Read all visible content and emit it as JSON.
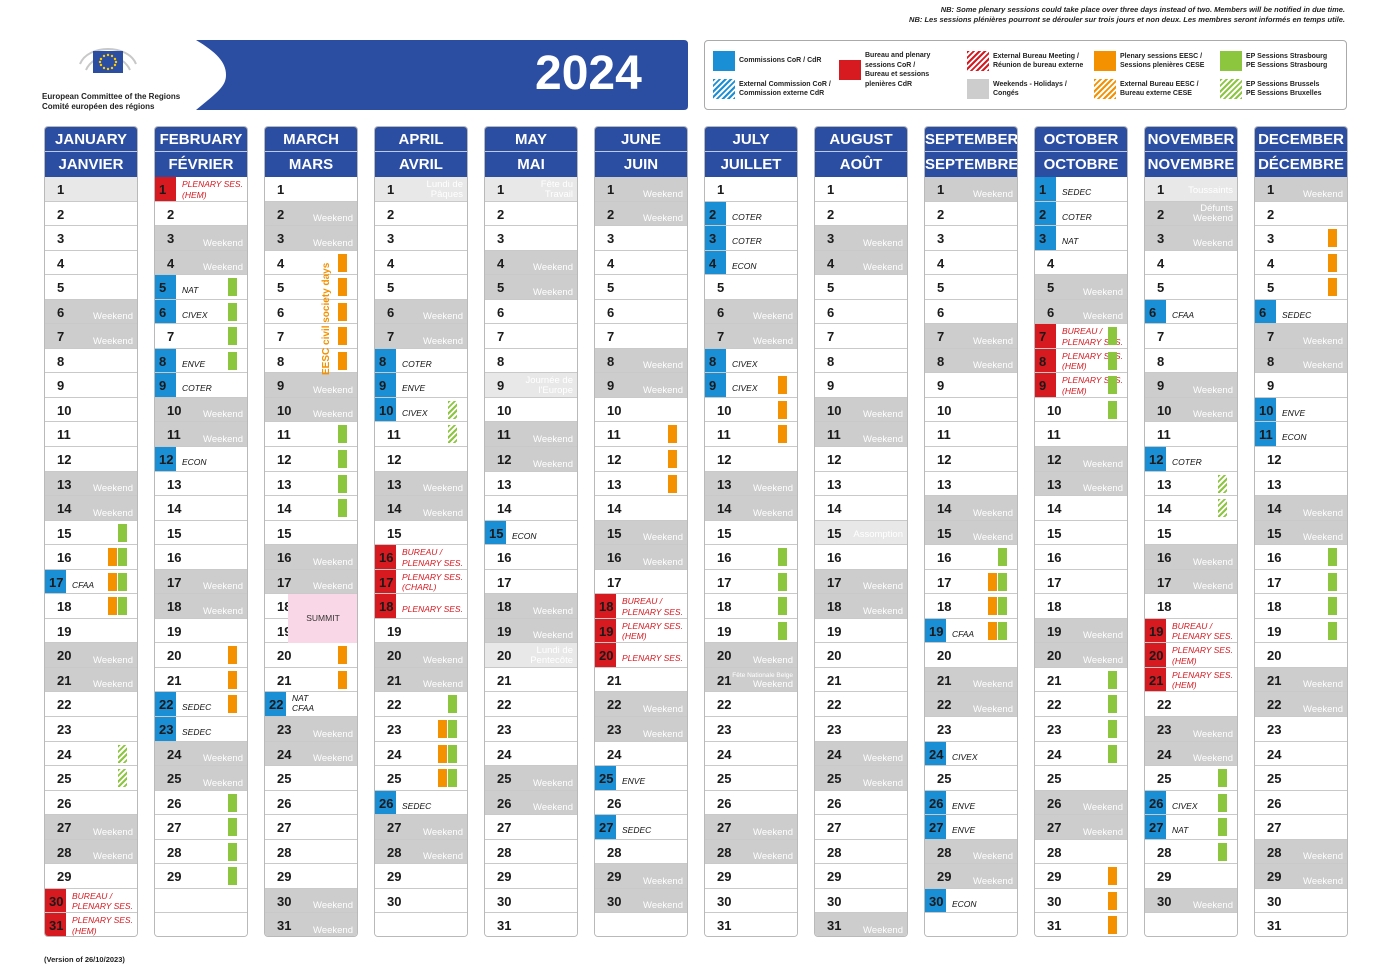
{
  "notice": {
    "en": "NB: Some plenary sessions could take place over three days instead of two.  Members will be notified in due time.",
    "fr": "NB: Les sessions plénières pourront se dérouler sur trois jours et non deux. Les membres seront informés en temps utile."
  },
  "organization": {
    "name_en": "European Committee of the Regions",
    "name_fr": "Comité européen des régions"
  },
  "year": "2024",
  "colors": {
    "cor": "#1a8fd5",
    "plenary": "#d71920",
    "eesc": "#f39100",
    "ep": "#8cc63f",
    "header": "#2c4ea2",
    "weekend": "#cdcdcd"
  },
  "legend": [
    {
      "swatch": "cor",
      "text": [
        "Commissions CoR / CdR"
      ]
    },
    {
      "swatch": "cor-hatch",
      "text": [
        "External Commission CoR /",
        "Commission externe CdR"
      ]
    },
    {
      "swatch": "plenary",
      "text": [
        "Bureau and plenary",
        "sessions CoR /",
        "Bureau et sessions",
        "plenières CdR"
      ]
    },
    {
      "swatch": "plenary-hatch",
      "text": [
        "External Bureau Meeting /",
        "Réunion de bureau externe"
      ]
    },
    {
      "swatch": "grey",
      "text": [
        "Weekends - Holidays /",
        "Congés"
      ]
    },
    {
      "swatch": "eesc",
      "text": [
        "Plenary sessions EESC /",
        "Sessions plenières CESE"
      ]
    },
    {
      "swatch": "eesc-hatch",
      "text": [
        "External Bureau EESC /",
        "Bureau externe CESE"
      ]
    },
    {
      "swatch": "ep",
      "text": [
        "EP Sessions Strasbourg",
        "PE Sessions Strasbourg"
      ]
    },
    {
      "swatch": "ep-hatch",
      "text": [
        "EP Sessions Brussels",
        "PE Sessions Bruxelles"
      ]
    }
  ],
  "weekend_label": "Weekend",
  "summit_label": "SUMMIT",
  "eesc_civil_society_days": "EESC civil society days",
  "version": "(Version of 26/10/2023)",
  "months": [
    {
      "en": "JANUARY",
      "fr": "JANVIER",
      "days": 31,
      "start": 1,
      "holidays": {
        "1": ""
      },
      "cor": {
        "17": "CFAA"
      },
      "plenary": {
        "30": [
          "BUREAU /",
          "PLENARY SES."
        ],
        "31": [
          "PLENARY SES.",
          "(HEM)"
        ]
      },
      "bars": {
        "15": [
          "ep"
        ],
        "16": [
          "eesc",
          "ep"
        ],
        "17": [
          "eesc",
          "ep"
        ],
        "18": [
          "eesc",
          "ep"
        ],
        "24": [
          "ep-hatch"
        ],
        "25": [
          "ep-hatch"
        ]
      }
    },
    {
      "en": "FEBRUARY",
      "fr": "FÉVRIER",
      "days": 29,
      "start": 4,
      "holidays": {},
      "cor": {
        "5": "NAT",
        "6": "CIVEX",
        "8": "ENVE",
        "9": "COTER",
        "12": "ECON",
        "22": "SEDEC",
        "23": "SEDEC"
      },
      "plenary": {
        "1": [
          "PLENARY SES.",
          "(HEM)"
        ]
      },
      "bars": {
        "5": [
          "ep"
        ],
        "6": [
          "ep"
        ],
        "7": [
          "ep"
        ],
        "8": [
          "ep"
        ],
        "20": [
          "eesc"
        ],
        "21": [
          "eesc"
        ],
        "22": [
          "eesc"
        ],
        "26": [
          "ep"
        ],
        "27": [
          "ep"
        ],
        "28": [
          "ep"
        ],
        "29": [
          "ep"
        ]
      }
    },
    {
      "en": "MARCH",
      "fr": "MARS",
      "days": 31,
      "start": 5,
      "holidays": {},
      "cor": {
        "22": "NAT CFAA"
      },
      "plenary": {},
      "bars": {
        "4": [
          "eesc"
        ],
        "5": [
          "eesc"
        ],
        "6": [
          "eesc"
        ],
        "7": [
          "eesc"
        ],
        "8": [
          "eesc"
        ],
        "11": [
          "ep"
        ],
        "12": [
          "ep"
        ],
        "13": [
          "ep"
        ],
        "14": [
          "ep"
        ],
        "20": [
          "eesc"
        ],
        "21": [
          "eesc"
        ]
      }
    },
    {
      "en": "APRIL",
      "fr": "AVRIL",
      "days": 30,
      "start": 1,
      "holidays": {
        "1": "Lundi de Pâques"
      },
      "cor": {
        "8": "COTER",
        "9": "ENVE",
        "10": "CIVEX",
        "26": "SEDEC"
      },
      "plenary": {
        "16": [
          "BUREAU /",
          "PLENARY SES."
        ],
        "17": [
          "PLENARY SES.",
          "(CHARL)"
        ],
        "18": [
          "PLENARY SES."
        ]
      },
      "bars": {
        "10": [
          "ep-hatch"
        ],
        "11": [
          "ep-hatch"
        ],
        "22": [
          "ep"
        ],
        "23": [
          "eesc",
          "ep"
        ],
        "24": [
          "eesc",
          "ep"
        ],
        "25": [
          "eesc",
          "ep"
        ]
      }
    },
    {
      "en": "MAY",
      "fr": "MAI",
      "days": 31,
      "start": 3,
      "holidays": {
        "1": "Fête du Travail",
        "9": "Journée de l'Europe",
        "20": "Lundi de Pentecôte"
      },
      "cor": {
        "15": "ECON"
      },
      "plenary": {},
      "bars": {}
    },
    {
      "en": "JUNE",
      "fr": "JUIN",
      "days": 30,
      "start": 6,
      "holidays": {},
      "cor": {
        "25": "ENVE",
        "27": "SEDEC"
      },
      "plenary": {
        "18": [
          "BUREAU /",
          "PLENARY SES."
        ],
        "19": [
          "PLENARY SES.",
          "(HEM)"
        ],
        "20": [
          "PLENARY SES."
        ]
      },
      "bars": {
        "11": [
          "eesc"
        ],
        "12": [
          "eesc"
        ],
        "13": [
          "eesc"
        ]
      }
    },
    {
      "en": "JULY",
      "fr": "JUILLET",
      "days": 31,
      "start": 1,
      "holidays": {
        "21": "Fête Nationale Belge"
      },
      "cor": {
        "2": "COTER",
        "3": "COTER",
        "4": "ECON",
        "8": "CIVEX",
        "9": "CIVEX"
      },
      "plenary": {},
      "bars": {
        "9": [
          "eesc"
        ],
        "10": [
          "eesc"
        ],
        "11": [
          "eesc"
        ],
        "16": [
          "ep"
        ],
        "17": [
          "ep"
        ],
        "18": [
          "ep"
        ],
        "19": [
          "ep"
        ]
      }
    },
    {
      "en": "AUGUST",
      "fr": "AOÛT",
      "days": 31,
      "start": 4,
      "holidays": {
        "15": "Assomption"
      },
      "cor": {},
      "plenary": {},
      "bars": {}
    },
    {
      "en": "SEPTEMBER",
      "fr": "SEPTEMBRE",
      "days": 30,
      "start": 7,
      "holidays": {},
      "cor": {
        "19": "CFAA",
        "24": "CIVEX",
        "26": "ENVE",
        "27": "ENVE",
        "30": "ECON"
      },
      "plenary": {},
      "bars": {
        "16": [
          "ep"
        ],
        "17": [
          "eesc",
          "ep"
        ],
        "18": [
          "eesc",
          "ep"
        ],
        "19": [
          "eesc",
          "ep"
        ]
      }
    },
    {
      "en": "OCTOBER",
      "fr": "OCTOBRE",
      "days": 31,
      "start": 2,
      "holidays": {},
      "cor": {
        "1": "SEDEC",
        "2": "COTER",
        "3": "NAT"
      },
      "plenary": {
        "7": [
          "BUREAU /",
          "PLENARY SES."
        ],
        "8": [
          "PLENARY SES.",
          "(HEM)"
        ],
        "9": [
          "PLENARY SES.",
          "(HEM)"
        ]
      },
      "bars": {
        "7": [
          "ep"
        ],
        "8": [
          "ep"
        ],
        "9": [
          "ep"
        ],
        "10": [
          "ep"
        ],
        "21": [
          "ep"
        ],
        "22": [
          "ep"
        ],
        "23": [
          "ep"
        ],
        "24": [
          "ep"
        ],
        "29": [
          "eesc"
        ],
        "30": [
          "eesc"
        ],
        "31": [
          "eesc"
        ]
      }
    },
    {
      "en": "NOVEMBER",
      "fr": "NOVEMBRE",
      "days": 30,
      "start": 5,
      "holidays": {
        "1": "Toussaints",
        "2": "Défunts"
      },
      "cor": {
        "6": "CFAA",
        "12": "COTER",
        "26": "CIVEX",
        "27": "NAT"
      },
      "plenary": {
        "19": [
          "BUREAU /",
          "PLENARY SES."
        ],
        "20": [
          "PLENARY SES.",
          "(HEM)"
        ],
        "21": [
          "PLENARY SES.",
          "(HEM)"
        ]
      },
      "bars": {
        "13": [
          "ep-hatch"
        ],
        "14": [
          "ep-hatch"
        ],
        "25": [
          "ep"
        ],
        "26": [
          "ep"
        ],
        "27": [
          "ep"
        ],
        "28": [
          "ep"
        ]
      }
    },
    {
      "en": "DECEMBER",
      "fr": "DÉCEMBRE",
      "days": 31,
      "start": 7,
      "holidays": {},
      "cor": {
        "6": "SEDEC",
        "10": "ENVE",
        "11": "ECON"
      },
      "plenary": {},
      "bars": {
        "3": [
          "eesc"
        ],
        "4": [
          "eesc"
        ],
        "5": [
          "eesc"
        ],
        "16": [
          "ep"
        ],
        "17": [
          "ep"
        ],
        "18": [
          "ep"
        ],
        "19": [
          "ep"
        ]
      }
    }
  ]
}
